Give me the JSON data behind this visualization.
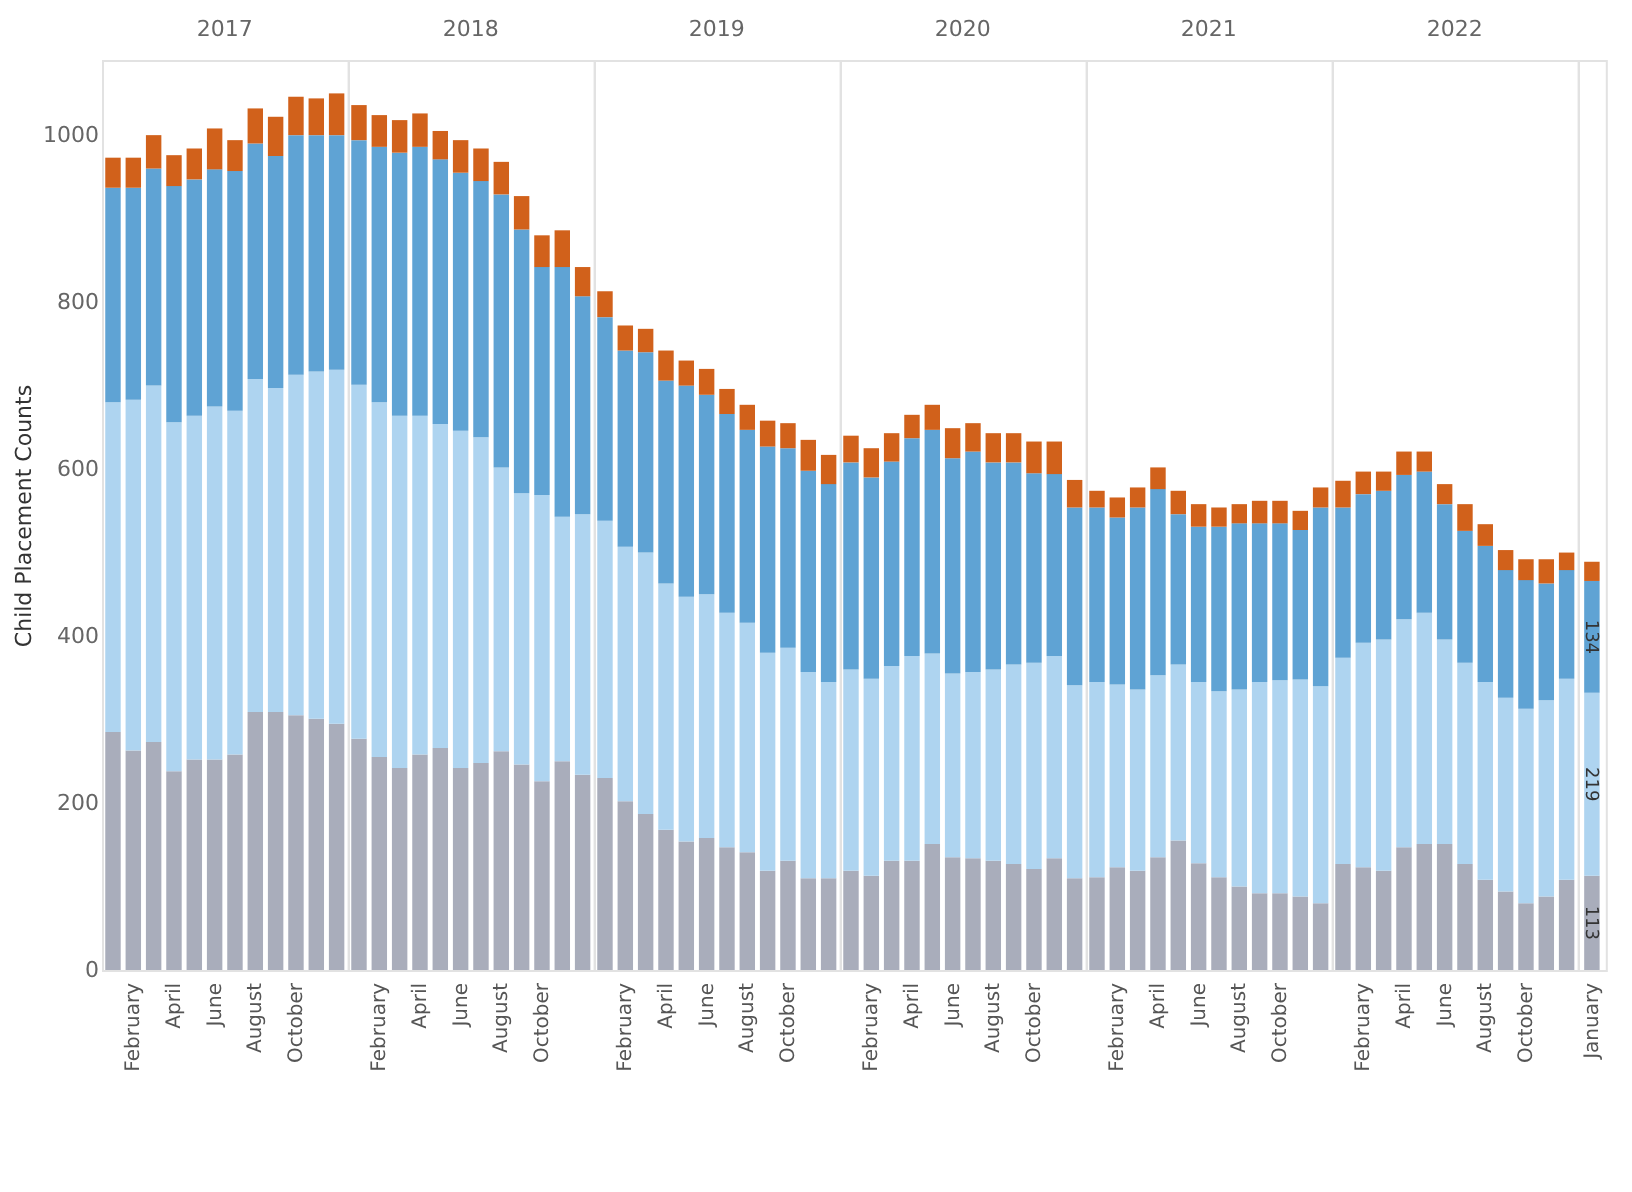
{
  "chart_data": [
    {
      "type": "bar",
      "stacked": true,
      "title": "2017",
      "ylabel": "Child Placement Counts",
      "ylim": [
        0,
        1090
      ],
      "yticks": [
        0,
        200,
        400,
        600,
        800,
        1000
      ],
      "categories": [
        null,
        "February",
        null,
        "April",
        null,
        "June",
        null,
        "August",
        null,
        "October",
        null,
        null
      ],
      "series": [
        {
          "color": "#a9adbb",
          "values": [
            285,
            263,
            273,
            238,
            252,
            252,
            258,
            309,
            309,
            305,
            301,
            295
          ]
        },
        {
          "color": "#aed4f0",
          "values": [
            395,
            420,
            427,
            418,
            412,
            423,
            412,
            399,
            388,
            408,
            416,
            424
          ]
        },
        {
          "color": "#5fa3d4",
          "values": [
            257,
            254,
            260,
            283,
            283,
            284,
            287,
            282,
            278,
            287,
            283,
            281
          ]
        },
        {
          "color": "#d1611b",
          "values": [
            36,
            36,
            40,
            37,
            37,
            49,
            37,
            42,
            47,
            46,
            44,
            50
          ]
        }
      ]
    },
    {
      "type": "bar",
      "stacked": true,
      "title": "2018",
      "ylim": [
        0,
        1090
      ],
      "tick_labels": "x",
      "categories": [
        null,
        "February",
        null,
        "April",
        null,
        "June",
        null,
        "August",
        null,
        "October",
        null,
        null
      ],
      "series": [
        {
          "color": "#a9adbb",
          "values": [
            277,
            255,
            242,
            258,
            266,
            242,
            248,
            262,
            246,
            226,
            250,
            234
          ]
        },
        {
          "color": "#aed4f0",
          "values": [
            424,
            425,
            422,
            406,
            388,
            404,
            390,
            340,
            325,
            343,
            293,
            312
          ]
        },
        {
          "color": "#5fa3d4",
          "values": [
            293,
            306,
            315,
            322,
            317,
            309,
            307,
            327,
            316,
            273,
            299,
            261
          ]
        },
        {
          "color": "#d1611b",
          "values": [
            42,
            38,
            39,
            40,
            34,
            39,
            39,
            39,
            40,
            38,
            44,
            35
          ]
        }
      ]
    },
    {
      "type": "bar",
      "stacked": true,
      "title": "2019",
      "ylim": [
        0,
        1090
      ],
      "tick_labels": "x",
      "categories": [
        null,
        "February",
        null,
        "April",
        null,
        "June",
        null,
        "August",
        null,
        "October",
        null,
        null
      ],
      "series": [
        {
          "color": "#a9adbb",
          "values": [
            230,
            202,
            187,
            168,
            154,
            158,
            147,
            141,
            119,
            131,
            110,
            110
          ]
        },
        {
          "color": "#aed4f0",
          "values": [
            308,
            305,
            313,
            295,
            293,
            292,
            281,
            275,
            261,
            255,
            247,
            235
          ]
        },
        {
          "color": "#5fa3d4",
          "values": [
            244,
            235,
            240,
            243,
            253,
            239,
            238,
            231,
            247,
            239,
            241,
            237
          ]
        },
        {
          "color": "#d1611b",
          "values": [
            31,
            30,
            28,
            36,
            30,
            31,
            30,
            30,
            31,
            30,
            37,
            35
          ]
        }
      ]
    },
    {
      "type": "bar",
      "stacked": true,
      "title": "2020",
      "ylim": [
        0,
        1090
      ],
      "tick_labels": "x",
      "categories": [
        null,
        "February",
        null,
        "April",
        null,
        "June",
        null,
        "August",
        null,
        "October",
        null,
        null
      ],
      "series": [
        {
          "color": "#a9adbb",
          "values": [
            119,
            113,
            131,
            131,
            151,
            135,
            134,
            131,
            127,
            121,
            134,
            110
          ]
        },
        {
          "color": "#aed4f0",
          "values": [
            241,
            236,
            233,
            245,
            228,
            220,
            223,
            229,
            239,
            247,
            242,
            231
          ]
        },
        {
          "color": "#5fa3d4",
          "values": [
            248,
            241,
            245,
            261,
            268,
            258,
            264,
            248,
            242,
            227,
            218,
            213
          ]
        },
        {
          "color": "#d1611b",
          "values": [
            32,
            35,
            34,
            28,
            30,
            36,
            34,
            35,
            35,
            38,
            39,
            33
          ]
        }
      ]
    },
    {
      "type": "bar",
      "stacked": true,
      "title": "2021",
      "ylim": [
        0,
        1090
      ],
      "tick_labels": "x",
      "categories": [
        null,
        "February",
        null,
        "April",
        null,
        "June",
        null,
        "August",
        null,
        "October",
        null,
        null
      ],
      "series": [
        {
          "color": "#a9adbb",
          "values": [
            111,
            123,
            119,
            135,
            155,
            128,
            111,
            100,
            92,
            92,
            88,
            80
          ]
        },
        {
          "color": "#aed4f0",
          "values": [
            234,
            219,
            217,
            218,
            211,
            217,
            223,
            236,
            253,
            255,
            260,
            260
          ]
        },
        {
          "color": "#5fa3d4",
          "values": [
            209,
            200,
            218,
            223,
            180,
            186,
            197,
            199,
            190,
            188,
            179,
            214
          ]
        },
        {
          "color": "#d1611b",
          "values": [
            20,
            24,
            24,
            26,
            28,
            27,
            23,
            23,
            27,
            27,
            23,
            24
          ]
        }
      ]
    },
    {
      "type": "bar",
      "stacked": true,
      "title": "2022",
      "ylim": [
        0,
        1090
      ],
      "tick_labels": "x",
      "categories": [
        null,
        "February",
        null,
        "April",
        null,
        "June",
        null,
        "August",
        null,
        "October",
        null,
        null
      ],
      "series": [
        {
          "color": "#a9adbb",
          "values": [
            127,
            123,
            119,
            147,
            151,
            151,
            127,
            108,
            94,
            80,
            88,
            108
          ]
        },
        {
          "color": "#aed4f0",
          "values": [
            247,
            269,
            277,
            273,
            277,
            245,
            241,
            237,
            232,
            233,
            235,
            241
          ]
        },
        {
          "color": "#5fa3d4",
          "values": [
            180,
            178,
            178,
            173,
            169,
            162,
            158,
            163,
            153,
            154,
            140,
            130
          ]
        },
        {
          "color": "#d1611b",
          "values": [
            32,
            27,
            23,
            28,
            24,
            24,
            32,
            26,
            24,
            25,
            29,
            21
          ]
        }
      ]
    },
    {
      "type": "bar",
      "stacked": true,
      "ylim": [
        0,
        1090
      ],
      "tick_labels": "x",
      "categories": [
        "January"
      ],
      "series": [
        {
          "color": "#a9adbb",
          "values": [
            113
          ],
          "value_labels": [
            "113"
          ]
        },
        {
          "color": "#aed4f0",
          "values": [
            219
          ],
          "value_labels": [
            "219"
          ]
        },
        {
          "color": "#5fa3d4",
          "values": [
            134
          ],
          "value_labels": [
            "134"
          ]
        },
        {
          "color": "#d1611b",
          "values": [
            23
          ],
          "value_labels": [
            null
          ]
        }
      ]
    }
  ]
}
